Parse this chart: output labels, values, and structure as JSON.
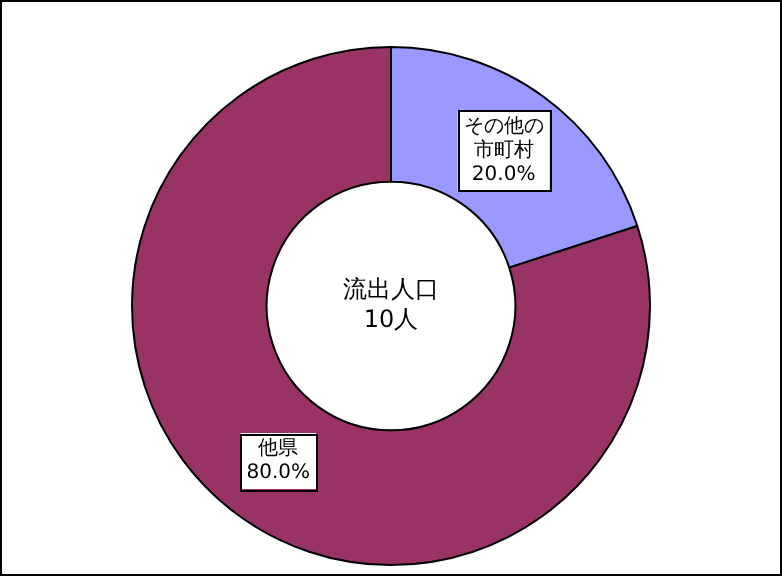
{
  "chart_data": {
    "type": "donut",
    "title": "流出人口",
    "subtitle": "10人",
    "categories": [
      "その他の市町村",
      "他県"
    ],
    "values": [
      20,
      80
    ],
    "colors": [
      "#9999ff",
      "#993366"
    ],
    "value_labels": [
      "20.0%",
      "80.0%"
    ],
    "legend": false
  }
}
